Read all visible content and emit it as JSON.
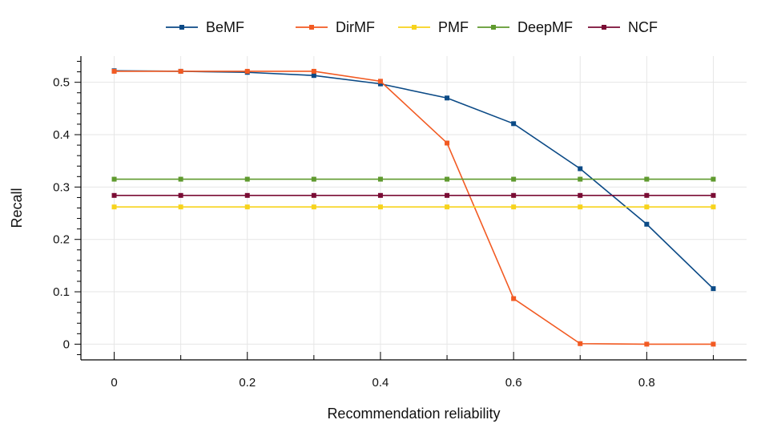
{
  "chart_data": {
    "type": "line",
    "title": "",
    "xlabel": "Recommendation reliability",
    "ylabel": "Recall",
    "x": [
      0,
      0.1,
      0.2,
      0.3,
      0.4,
      0.5,
      0.6,
      0.7,
      0.8,
      0.9
    ],
    "xticks": [
      "0",
      "0.2",
      "0.4",
      "0.6",
      "0.8"
    ],
    "xtick_values": [
      0,
      0.2,
      0.4,
      0.6,
      0.8
    ],
    "yticks": [
      "0",
      "0.1",
      "0.2",
      "0.3",
      "0.4",
      "0.5"
    ],
    "ytick_values": [
      0,
      0.1,
      0.2,
      0.3,
      0.4,
      0.5
    ],
    "xlim": [
      -0.05,
      0.95
    ],
    "ylim": [
      -0.03,
      0.55
    ],
    "grid": true,
    "legend_position": "top",
    "series": [
      {
        "name": "BeMF",
        "color": "#0b4a86",
        "values": [
          0.522,
          0.521,
          0.519,
          0.513,
          0.497,
          0.47,
          0.421,
          0.335,
          0.229,
          0.106
        ]
      },
      {
        "name": "DirMF",
        "color": "#f25a22",
        "values": [
          0.521,
          0.521,
          0.521,
          0.521,
          0.502,
          0.384,
          0.087,
          0.001,
          0.0,
          0.0
        ]
      },
      {
        "name": "PMF",
        "color": "#f7d31c",
        "values": [
          0.262,
          0.262,
          0.262,
          0.262,
          0.262,
          0.262,
          0.262,
          0.262,
          0.262,
          0.262
        ]
      },
      {
        "name": "DeepMF",
        "color": "#5f9a2e",
        "values": [
          0.315,
          0.315,
          0.315,
          0.315,
          0.315,
          0.315,
          0.315,
          0.315,
          0.315,
          0.315
        ]
      },
      {
        "name": "NCF",
        "color": "#7a0c34",
        "values": [
          0.284,
          0.284,
          0.284,
          0.284,
          0.284,
          0.284,
          0.284,
          0.284,
          0.284,
          0.284
        ]
      }
    ]
  }
}
